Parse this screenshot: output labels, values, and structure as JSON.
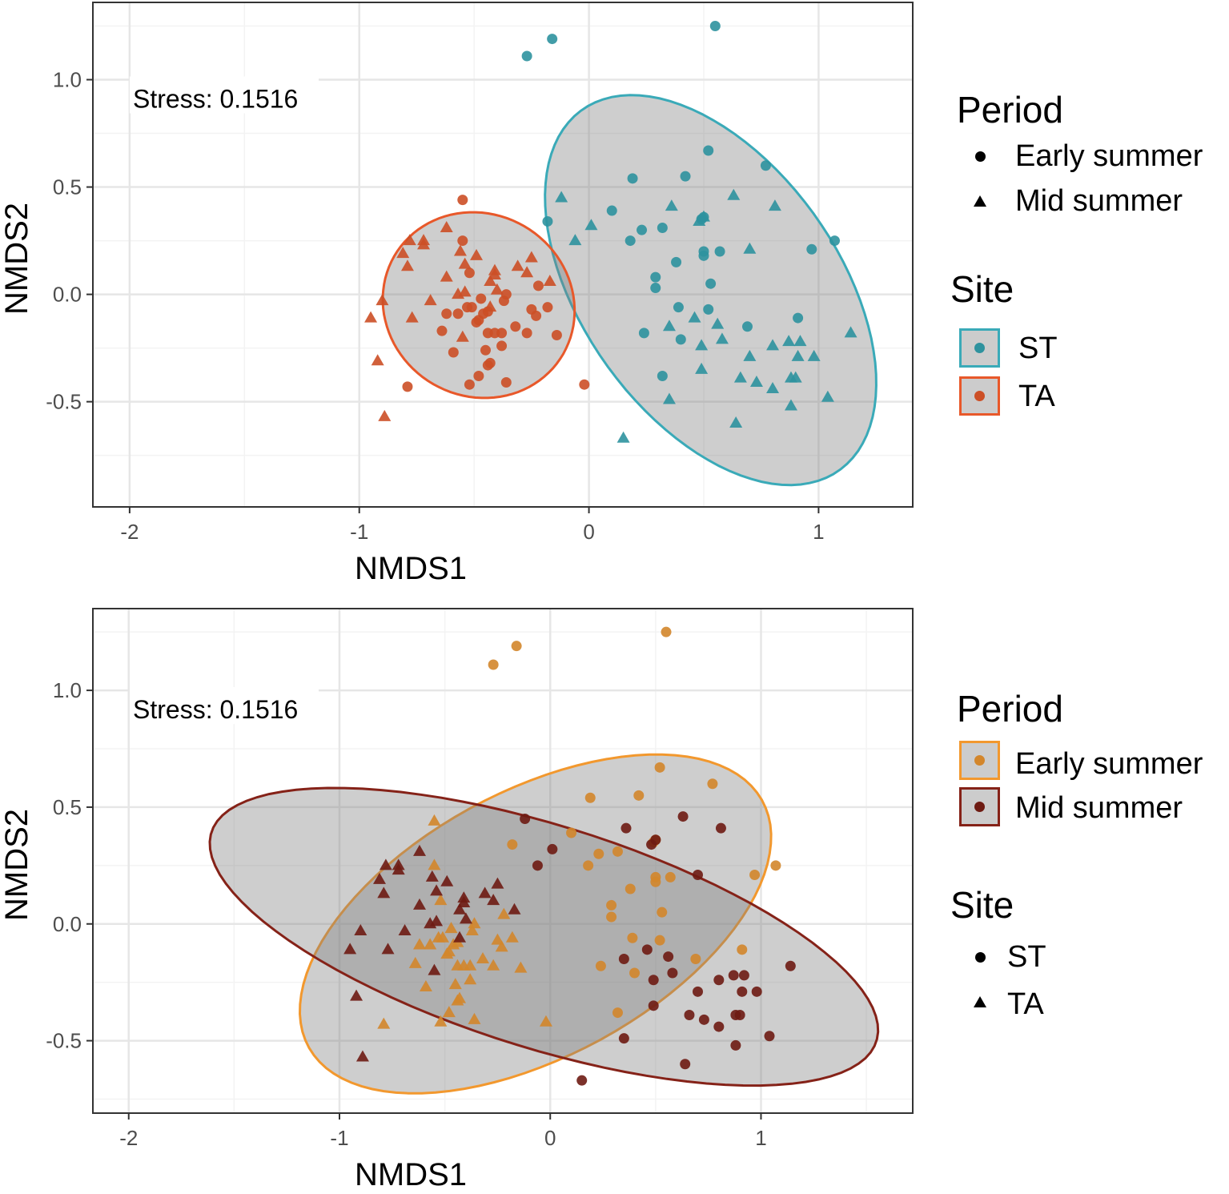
{
  "chart_data": {
    "type": "scatter",
    "series": [
      {
        "site": "ST",
        "period": "Early summer",
        "points": [
          [
            0.52,
            0.67
          ],
          [
            0.77,
            0.6
          ],
          [
            0.19,
            0.54
          ],
          [
            0.42,
            0.55
          ],
          [
            0.1,
            0.39
          ],
          [
            0.23,
            0.3
          ],
          [
            0.32,
            0.31
          ],
          [
            0.18,
            0.25
          ],
          [
            0.5,
            0.36
          ],
          [
            0.49,
            0.35
          ],
          [
            -0.18,
            0.34
          ],
          [
            1.07,
            0.25
          ],
          [
            0.5,
            0.2
          ],
          [
            0.5,
            0.18
          ],
          [
            0.57,
            0.2
          ],
          [
            0.97,
            0.21
          ],
          [
            0.38,
            0.15
          ],
          [
            0.29,
            0.08
          ],
          [
            0.29,
            0.03
          ],
          [
            0.53,
            0.05
          ],
          [
            0.39,
            -0.06
          ],
          [
            0.52,
            -0.07
          ],
          [
            0.91,
            -0.11
          ],
          [
            0.69,
            -0.15
          ],
          [
            0.24,
            -0.18
          ],
          [
            0.4,
            -0.21
          ],
          [
            0.32,
            -0.38
          ],
          [
            -0.27,
            1.11
          ],
          [
            -0.16,
            1.19
          ],
          [
            0.55,
            1.25
          ]
        ]
      },
      {
        "site": "ST",
        "period": "Mid summer",
        "points": [
          [
            -0.12,
            0.45
          ],
          [
            0.01,
            0.32
          ],
          [
            -0.06,
            0.25
          ],
          [
            0.36,
            0.41
          ],
          [
            0.63,
            0.46
          ],
          [
            0.81,
            0.41
          ],
          [
            0.5,
            0.36
          ],
          [
            0.48,
            0.34
          ],
          [
            0.7,
            0.21
          ],
          [
            0.46,
            -0.11
          ],
          [
            0.35,
            -0.15
          ],
          [
            0.56,
            -0.14
          ],
          [
            0.58,
            -0.21
          ],
          [
            0.49,
            -0.24
          ],
          [
            0.87,
            -0.22
          ],
          [
            0.92,
            -0.22
          ],
          [
            0.8,
            -0.24
          ],
          [
            1.14,
            -0.18
          ],
          [
            0.7,
            -0.29
          ],
          [
            0.91,
            -0.29
          ],
          [
            0.98,
            -0.29
          ],
          [
            0.49,
            -0.35
          ],
          [
            0.66,
            -0.39
          ],
          [
            0.73,
            -0.41
          ],
          [
            0.8,
            -0.44
          ],
          [
            0.88,
            -0.39
          ],
          [
            0.9,
            -0.39
          ],
          [
            0.35,
            -0.49
          ],
          [
            1.04,
            -0.48
          ],
          [
            0.88,
            -0.52
          ],
          [
            0.64,
            -0.6
          ],
          [
            0.15,
            -0.67
          ]
        ]
      },
      {
        "site": "TA",
        "period": "Early summer",
        "points": [
          [
            -0.55,
            0.44
          ],
          [
            -0.55,
            0.25
          ],
          [
            -0.52,
            0.1
          ],
          [
            -0.47,
            -0.02
          ],
          [
            -0.37,
            -0.03
          ],
          [
            -0.36,
            0.0
          ],
          [
            -0.62,
            -0.09
          ],
          [
            -0.57,
            -0.09
          ],
          [
            -0.53,
            -0.06
          ],
          [
            -0.51,
            -0.06
          ],
          [
            -0.48,
            -0.12
          ],
          [
            -0.46,
            -0.09
          ],
          [
            -0.44,
            -0.08
          ],
          [
            -0.25,
            -0.07
          ],
          [
            -0.23,
            -0.1
          ],
          [
            -0.18,
            -0.06
          ],
          [
            -0.22,
            0.04
          ],
          [
            -0.64,
            -0.17
          ],
          [
            -0.32,
            -0.15
          ],
          [
            -0.44,
            -0.18
          ],
          [
            -0.41,
            -0.18
          ],
          [
            -0.38,
            -0.18
          ],
          [
            -0.27,
            -0.18
          ],
          [
            -0.14,
            -0.19
          ],
          [
            -0.38,
            -0.24
          ],
          [
            -0.59,
            -0.27
          ],
          [
            -0.45,
            -0.26
          ],
          [
            -0.44,
            -0.33
          ],
          [
            -0.43,
            -0.32
          ],
          [
            -0.48,
            -0.38
          ],
          [
            -0.52,
            -0.42
          ],
          [
            -0.36,
            -0.41
          ],
          [
            -0.79,
            -0.43
          ],
          [
            -0.02,
            -0.42
          ],
          [
            -0.49,
            -0.13
          ]
        ]
      },
      {
        "site": "TA",
        "period": "Mid summer",
        "points": [
          [
            -0.62,
            0.31
          ],
          [
            -0.78,
            0.25
          ],
          [
            -0.72,
            0.25
          ],
          [
            -0.72,
            0.23
          ],
          [
            -0.81,
            0.19
          ],
          [
            -0.79,
            0.13
          ],
          [
            -0.56,
            0.2
          ],
          [
            -0.49,
            0.18
          ],
          [
            -0.54,
            0.14
          ],
          [
            -0.62,
            0.08
          ],
          [
            -0.41,
            0.11
          ],
          [
            -0.41,
            0.09
          ],
          [
            -0.43,
            0.06
          ],
          [
            -0.4,
            0.02
          ],
          [
            -0.31,
            0.13
          ],
          [
            -0.25,
            0.17
          ],
          [
            -0.27,
            0.1
          ],
          [
            -0.17,
            0.06
          ],
          [
            -0.57,
            0.0
          ],
          [
            -0.54,
            0.01
          ],
          [
            -0.69,
            -0.03
          ],
          [
            -0.9,
            -0.03
          ],
          [
            -0.77,
            -0.11
          ],
          [
            -0.95,
            -0.11
          ],
          [
            -0.43,
            -0.06
          ],
          [
            -0.55,
            -0.2
          ],
          [
            -0.92,
            -0.31
          ],
          [
            -0.89,
            -0.57
          ]
        ]
      }
    ],
    "panels": [
      {
        "xlabel": "NMDS1",
        "ylabel": "NMDS2",
        "xlim": [
          -2.16,
          1.41
        ],
        "ylim": [
          -0.99,
          1.36
        ],
        "xticks": [
          {
            "v": -2,
            "label": "-2"
          },
          {
            "v": -1,
            "label": "-1"
          },
          {
            "v": 0,
            "label": "0"
          },
          {
            "v": 1,
            "label": "1"
          }
        ],
        "yticks": [
          {
            "v": 1,
            "label": "1.0"
          },
          {
            "v": 0.5,
            "label": "0.5"
          },
          {
            "v": 0,
            "label": "0.0"
          },
          {
            "v": -0.5,
            "label": "-0.5"
          }
        ],
        "annotation": "Stress: 0.1516",
        "color_by": "site",
        "shape_by": "period",
        "ellipse_by": "site",
        "colors": {
          "ST": "#2E929E",
          "TA": "#CC4F26"
        },
        "stroke_colors": {
          "ST": "#3AAAB8",
          "TA": "#E8582A"
        },
        "ellipses": [
          {
            "group": "ST",
            "center": [
              0.53,
              0.02
            ],
            "a": 1.01,
            "b": 0.57,
            "angle_deg": -58
          },
          {
            "group": "TA",
            "center": [
              -0.48,
              -0.05
            ],
            "a": 0.44,
            "b": 0.41,
            "angle_deg": -60
          }
        ],
        "legend": {
          "shape_title": "Period",
          "shape_items": [
            "Early summer",
            "Mid summer"
          ],
          "color_title": "Site",
          "color_items": [
            "ST",
            "TA"
          ]
        }
      },
      {
        "xlabel": "NMDS1",
        "ylabel": "NMDS2",
        "xlim": [
          -2.17,
          1.72
        ],
        "ylim": [
          -0.81,
          1.35
        ],
        "xticks": [
          {
            "v": -2,
            "label": "-2"
          },
          {
            "v": -1,
            "label": "-1"
          },
          {
            "v": 0,
            "label": "0"
          },
          {
            "v": 1,
            "label": "1"
          }
        ],
        "yticks": [
          {
            "v": 1,
            "label": "1.0"
          },
          {
            "v": 0.5,
            "label": "0.5"
          },
          {
            "v": 0,
            "label": "0.0"
          },
          {
            "v": -0.5,
            "label": "-0.5"
          }
        ],
        "annotation": "Stress: 0.1516",
        "color_by": "period",
        "shape_by": "site",
        "ellipse_by": "period",
        "colors": {
          "Early summer": "#D3862B",
          "Mid summer": "#6E1B13"
        },
        "stroke_colors": {
          "Early summer": "#F2982E",
          "Mid summer": "#852218"
        },
        "ellipses": [
          {
            "group": "Early summer",
            "center": [
              -0.07,
              0.0
            ],
            "a": 1.2,
            "b": 0.58,
            "angle_deg": 24.5
          },
          {
            "group": "Mid summer",
            "center": [
              -0.03,
              -0.055
            ],
            "a": 1.64,
            "b": 0.48,
            "angle_deg": -15.5
          }
        ],
        "legend": {
          "color_title": "Period",
          "color_items": [
            "Early summer",
            "Mid summer"
          ],
          "shape_title": "Site",
          "shape_items": [
            "ST",
            "TA"
          ]
        }
      }
    ]
  }
}
